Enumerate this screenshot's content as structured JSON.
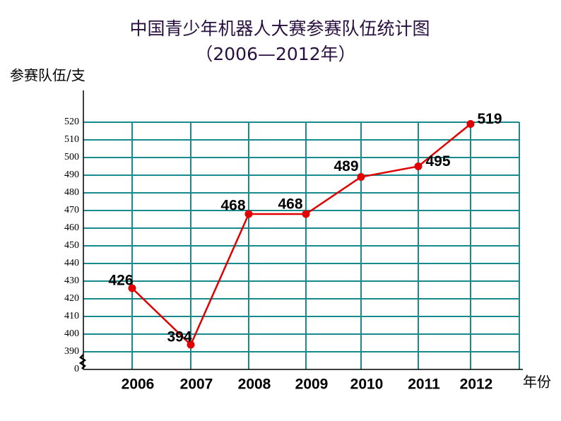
{
  "chart_data": {
    "type": "line",
    "title": "中国青少年机器人大赛参赛队伍统计图",
    "subtitle": "（2006—2012年）",
    "y_label": "参赛队伍/支",
    "x_label": "年份",
    "categories": [
      "2006",
      "2007",
      "2008",
      "2009",
      "2010",
      "2011",
      "2012"
    ],
    "values": [
      426,
      394,
      468,
      468,
      489,
      495,
      519
    ],
    "color": "#e00000",
    "ylim": [
      0,
      520
    ],
    "ybreak": [
      0,
      390
    ],
    "yticks": [
      0,
      390,
      400,
      410,
      420,
      430,
      440,
      450,
      460,
      470,
      480,
      490,
      500,
      510,
      520
    ],
    "grid": true
  }
}
